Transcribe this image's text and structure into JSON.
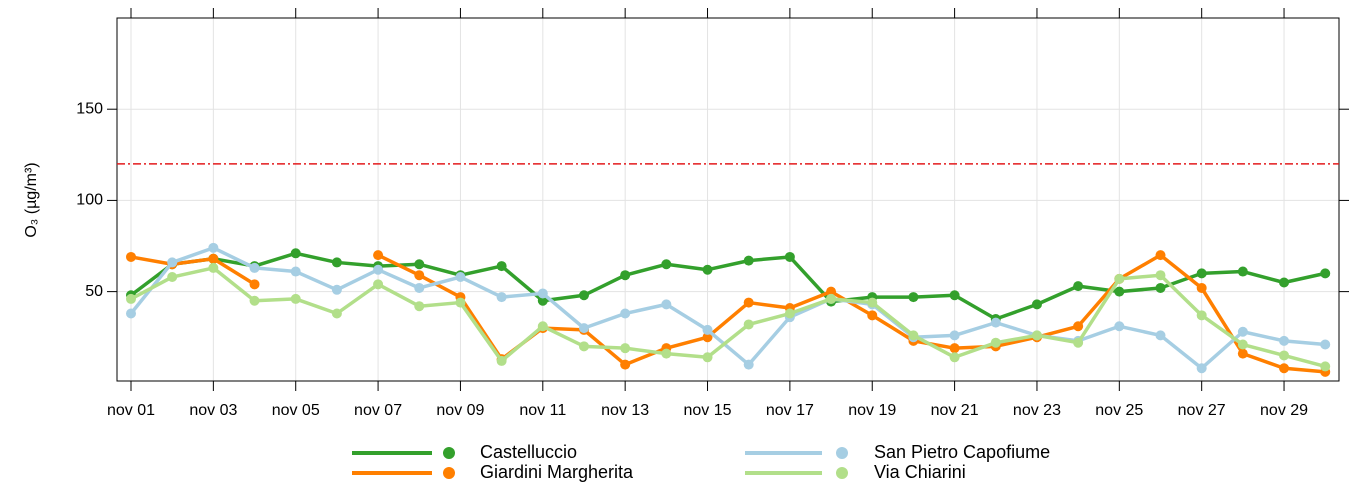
{
  "chart_data": {
    "type": "line",
    "y_label": "O₃ (µg/m³)",
    "categories": [
      "nov 01",
      null,
      "nov 03",
      null,
      "nov 05",
      null,
      "nov 07",
      null,
      "nov 09",
      null,
      "nov 11",
      null,
      "nov 13",
      null,
      "nov 15",
      null,
      "nov 17",
      null,
      "nov 19",
      null,
      "nov 21",
      null,
      "nov 23",
      null,
      "nov 25",
      null,
      "nov 27",
      null,
      "nov 29",
      null
    ],
    "ylim": [
      1,
      200
    ],
    "yticks": [
      50,
      100,
      150
    ],
    "grid": true,
    "reference_line": {
      "value": 120,
      "color": "#e31a1c"
    },
    "series": [
      {
        "name": "Castelluccio",
        "color": "#33a02c",
        "values": [
          48,
          65,
          68,
          64,
          71,
          66,
          64,
          65,
          59,
          64,
          45,
          48,
          59,
          65,
          62,
          67,
          69,
          44.5,
          47,
          47,
          48,
          35,
          43,
          53,
          50,
          52,
          60,
          61,
          55,
          60
        ]
      },
      {
        "name": "Giardini Margherita",
        "color": "#ff7f00",
        "values": [
          69,
          65,
          68,
          54,
          null,
          null,
          70,
          59,
          47,
          13,
          30,
          29,
          10,
          19,
          25,
          44,
          41,
          50,
          37,
          23,
          19,
          20,
          25,
          31,
          57,
          70,
          52,
          16,
          8,
          6
        ]
      },
      {
        "name": "San Pietro Capofiume",
        "color": "#a6cee3",
        "values": [
          38,
          66,
          74,
          63,
          61,
          51,
          62,
          52,
          58,
          47,
          49,
          30,
          38,
          43,
          29,
          10,
          36,
          46,
          43,
          25,
          26,
          33,
          26,
          23,
          31,
          26,
          8,
          28,
          23,
          21
        ]
      },
      {
        "name": "Via Chiarini",
        "color": "#b2df8a",
        "values": [
          46,
          58,
          63,
          45,
          46,
          38,
          54,
          42,
          44,
          12,
          31,
          20,
          19,
          16,
          14,
          32,
          38,
          46,
          44,
          26,
          14,
          22,
          26,
          22,
          57,
          59,
          37,
          21,
          15,
          9
        ]
      }
    ]
  }
}
